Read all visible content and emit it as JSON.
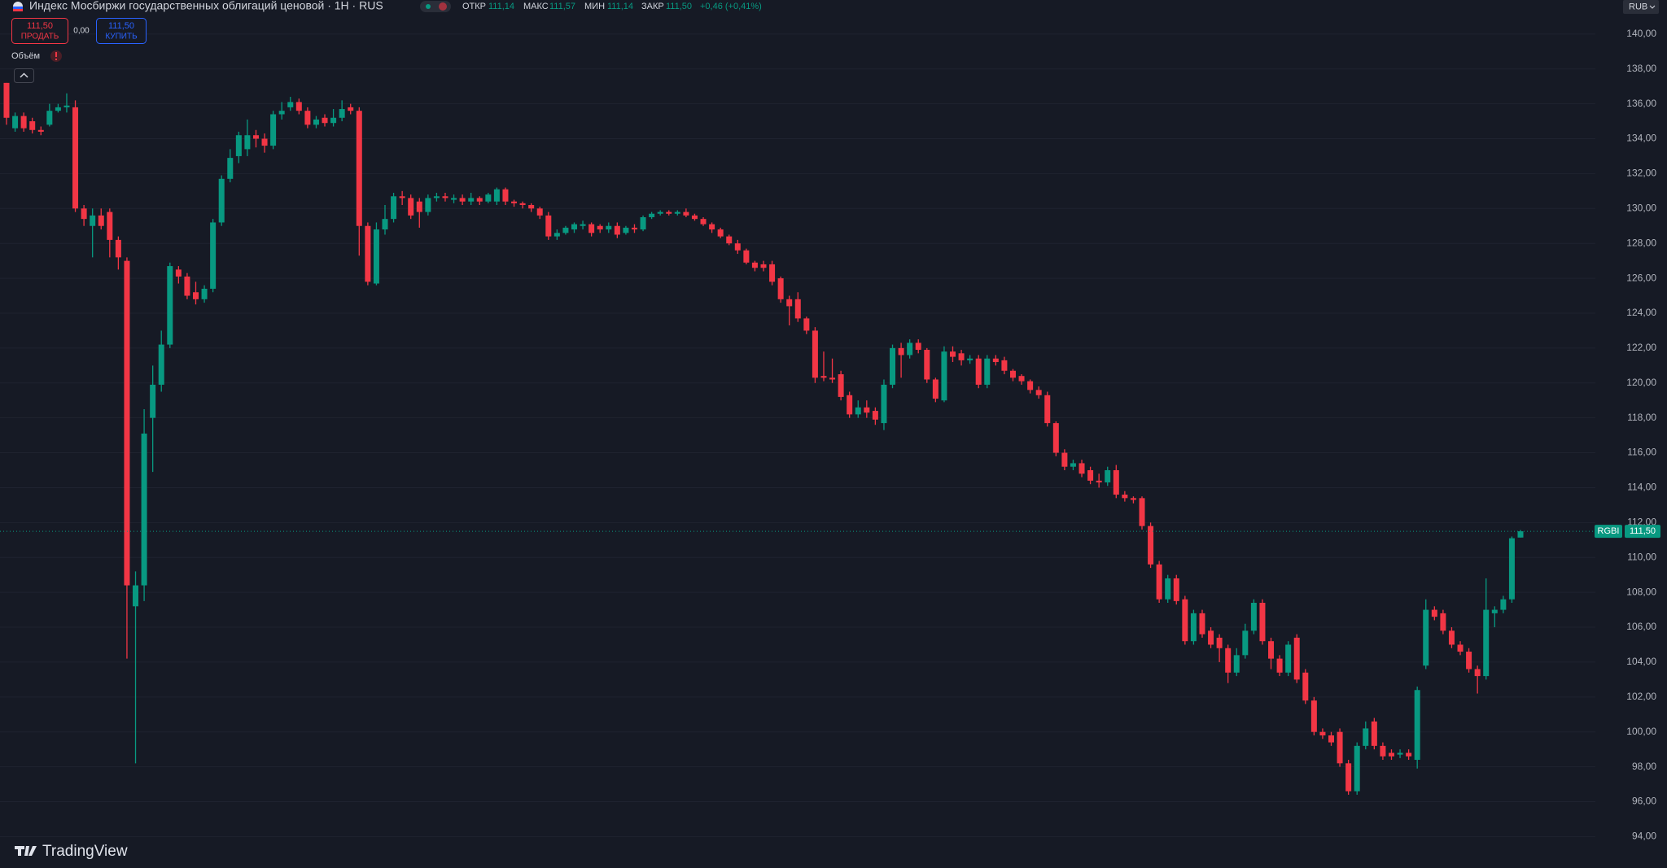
{
  "header": {
    "title": "Индекс Мосбиржи государственных облигаций ценовой · 1H · RUS",
    "open_label": "ОТКР",
    "open_value": "111,14",
    "high_label": "МАКС",
    "high_value": "111,57",
    "low_label": "МИН",
    "low_value": "111,14",
    "close_label": "ЗАКР",
    "close_value": "111,50",
    "change": "+0,46 (+0,41%)",
    "sell_price": "111,50",
    "sell_label": "ПРОДАТЬ",
    "spread": "0,00",
    "buy_price": "111,50",
    "buy_label": "КУПИТЬ",
    "volume_label": "Объём",
    "currency": "RUB",
    "brand": "TradingView"
  },
  "chart_data": {
    "type": "candlestick",
    "symbol": "RGBI",
    "up_color": "#089981",
    "down_color": "#f23645",
    "grid": true,
    "last_price": {
      "value": 111.5,
      "label": "111,50"
    },
    "ylim": [
      92.2,
      141.95
    ],
    "yticks": [
      {
        "value": 94,
        "label": "94,00"
      },
      {
        "value": 96,
        "label": "96,00"
      },
      {
        "value": 98,
        "label": "98,00"
      },
      {
        "value": 100,
        "label": "100,00"
      },
      {
        "value": 102,
        "label": "102,00"
      },
      {
        "value": 104,
        "label": "104,00"
      },
      {
        "value": 106,
        "label": "106,00"
      },
      {
        "value": 108,
        "label": "108,00"
      },
      {
        "value": 110,
        "label": "110,00"
      },
      {
        "value": 112,
        "label": "112,00"
      },
      {
        "value": 114,
        "label": "114,00"
      },
      {
        "value": 116,
        "label": "116,00"
      },
      {
        "value": 118,
        "label": "118,00"
      },
      {
        "value": 120,
        "label": "120,00"
      },
      {
        "value": 122,
        "label": "122,00"
      },
      {
        "value": 124,
        "label": "124,00"
      },
      {
        "value": 126,
        "label": "126,00"
      },
      {
        "value": 128,
        "label": "128,00"
      },
      {
        "value": 130,
        "label": "130,00"
      },
      {
        "value": 132,
        "label": "132,00"
      },
      {
        "value": 134,
        "label": "134,00"
      },
      {
        "value": 136,
        "label": "136,00"
      },
      {
        "value": 138,
        "label": "138,00"
      },
      {
        "value": 140,
        "label": "140,00"
      }
    ],
    "open": [
      137.2,
      134.6,
      135.3,
      135.0,
      134.5,
      134.8,
      135.6,
      135.8,
      135.8,
      130.0,
      129.0,
      129.6,
      129.8,
      128.2,
      127.0,
      107.2,
      108.4,
      118.0,
      119.9,
      122.2,
      126.5,
      126.1,
      125.2,
      124.8,
      125.4,
      129.2,
      131.7,
      133.0,
      133.4,
      134.2,
      134.0,
      133.6,
      135.4,
      135.8,
      136.1,
      135.6,
      134.8,
      135.2,
      134.9,
      135.2,
      135.8,
      135.6,
      129.0,
      125.7,
      128.8,
      129.4,
      130.7,
      130.6,
      130.4,
      129.8,
      130.6,
      130.7,
      130.5,
      130.6,
      130.4,
      130.6,
      130.4,
      130.4,
      131.1,
      130.4,
      130.3,
      130.2,
      130.0,
      129.6,
      128.4,
      128.6,
      128.8,
      129.0,
      129.1,
      129.0,
      128.8,
      129.0,
      128.6,
      128.9,
      128.8,
      129.5,
      129.7,
      129.8,
      129.7,
      129.8,
      129.6,
      129.4,
      129.1,
      128.8,
      128.4,
      128.0,
      127.6,
      126.9,
      126.8,
      126.8,
      126.0,
      124.8,
      124.8,
      123.7,
      123.0,
      120.4,
      120.3,
      120.5,
      119.3,
      118.2,
      118.6,
      118.4,
      117.7,
      119.9,
      122.0,
      121.6,
      122.3,
      121.9,
      120.2,
      119.0,
      121.8,
      121.7,
      121.3,
      121.4,
      119.9,
      121.4,
      121.3,
      120.7,
      120.4,
      120.1,
      119.6,
      119.3,
      117.7,
      116.0,
      115.2,
      115.4,
      115.0,
      114.4,
      114.3,
      115.0,
      113.6,
      113.4,
      113.4,
      111.8,
      109.6,
      107.6,
      108.8,
      107.6,
      105.2,
      106.8,
      105.8,
      105.4,
      104.8,
      103.4,
      104.4,
      105.8,
      107.4,
      105.2,
      104.2,
      103.4,
      105.4,
      103.4,
      101.8,
      100.0,
      99.8,
      100.0,
      98.2,
      96.6,
      99.2,
      100.6,
      99.2,
      98.8,
      98.7,
      98.8,
      98.4,
      103.8,
      107.0,
      106.8,
      105.8,
      105.0,
      104.6,
      103.6,
      103.2,
      106.8,
      107.0,
      107.6,
      111.14
    ],
    "high": [
      137.2,
      135.5,
      135.5,
      135.2,
      134.7,
      136.0,
      136.0,
      136.6,
      136.2,
      130.2,
      130.0,
      130.0,
      130.0,
      128.4,
      127.2,
      109.2,
      118.5,
      121.0,
      123.0,
      126.9,
      126.7,
      126.3,
      125.8,
      125.6,
      129.4,
      131.9,
      133.4,
      134.4,
      135.1,
      134.5,
      134.3,
      135.6,
      136.1,
      136.4,
      136.3,
      135.8,
      135.3,
      135.4,
      135.7,
      136.2,
      136.0,
      135.8,
      129.2,
      129.2,
      130.2,
      130.9,
      131.0,
      130.8,
      130.6,
      130.8,
      130.9,
      130.9,
      130.8,
      130.8,
      130.9,
      130.7,
      130.9,
      131.2,
      131.2,
      130.5,
      130.4,
      130.3,
      130.1,
      129.8,
      128.8,
      129.0,
      129.2,
      129.3,
      129.2,
      129.1,
      129.2,
      129.2,
      129.0,
      129.1,
      129.6,
      129.8,
      129.9,
      129.9,
      129.9,
      130.0,
      129.7,
      129.5,
      129.2,
      128.9,
      128.5,
      128.2,
      127.7,
      127.0,
      127.0,
      127.0,
      126.1,
      125.0,
      125.2,
      123.8,
      123.2,
      121.8,
      121.4,
      120.7,
      119.5,
      119.0,
      119.0,
      118.6,
      120.2,
      122.2,
      122.3,
      122.5,
      122.5,
      122.0,
      120.3,
      122.1,
      122.1,
      121.9,
      121.6,
      121.6,
      121.6,
      121.6,
      121.5,
      120.8,
      120.5,
      120.2,
      119.8,
      119.5,
      117.8,
      116.2,
      115.6,
      115.6,
      115.2,
      114.8,
      115.2,
      115.3,
      113.8,
      113.5,
      113.5,
      112.0,
      109.8,
      109.0,
      109.0,
      107.8,
      107.0,
      107.0,
      106.0,
      105.6,
      105.0,
      104.8,
      106.2,
      107.6,
      107.6,
      105.4,
      104.4,
      105.2,
      105.6,
      103.6,
      102.0,
      100.2,
      100.0,
      100.2,
      98.4,
      99.4,
      100.6,
      100.8,
      99.4,
      99.0,
      99.0,
      99.0,
      102.6,
      107.6,
      107.2,
      107.0,
      106.0,
      105.2,
      104.8,
      103.8,
      108.8,
      107.2,
      107.8,
      111.2,
      111.57
    ],
    "low": [
      134.8,
      134.4,
      134.4,
      134.3,
      134.2,
      134.7,
      135.5,
      135.5,
      129.8,
      129.0,
      127.2,
      128.8,
      127.2,
      126.5,
      104.2,
      98.2,
      107.5,
      114.9,
      119.5,
      122.0,
      125.7,
      124.8,
      124.5,
      124.6,
      125.2,
      129.0,
      131.5,
      132.6,
      133.0,
      133.5,
      133.2,
      133.4,
      135.1,
      135.6,
      135.4,
      134.6,
      134.6,
      134.7,
      134.7,
      135.0,
      135.4,
      127.3,
      125.6,
      125.6,
      128.5,
      129.2,
      130.2,
      129.4,
      128.9,
      129.6,
      130.4,
      130.4,
      130.3,
      130.2,
      130.2,
      130.2,
      130.3,
      130.2,
      130.2,
      130.1,
      130.0,
      129.8,
      129.4,
      128.2,
      128.2,
      128.5,
      128.6,
      128.8,
      128.4,
      128.6,
      128.6,
      128.3,
      128.5,
      128.6,
      128.7,
      129.4,
      129.6,
      129.6,
      129.6,
      129.5,
      129.3,
      129.0,
      128.6,
      128.3,
      127.9,
      127.4,
      126.8,
      126.4,
      126.4,
      125.6,
      124.6,
      123.3,
      123.5,
      122.8,
      120.0,
      120.1,
      120.0,
      119.0,
      118.0,
      118.0,
      118.0,
      117.6,
      117.3,
      119.7,
      120.3,
      121.4,
      121.7,
      120.0,
      118.9,
      118.9,
      121.2,
      121.0,
      121.1,
      119.7,
      119.7,
      121.0,
      120.5,
      120.1,
      119.9,
      119.4,
      119.1,
      117.5,
      115.8,
      115.0,
      115.0,
      114.6,
      114.2,
      114.0,
      114.1,
      113.4,
      113.2,
      113.1,
      111.6,
      109.4,
      107.4,
      107.4,
      107.3,
      105.0,
      105.0,
      105.4,
      104.8,
      104.0,
      102.8,
      103.2,
      104.2,
      105.6,
      105.0,
      103.6,
      103.2,
      103.2,
      102.8,
      101.6,
      99.8,
      99.6,
      99.2,
      98.0,
      96.4,
      96.4,
      99.0,
      99.0,
      98.4,
      98.4,
      98.5,
      98.4,
      97.9,
      103.6,
      106.4,
      105.6,
      104.8,
      104.4,
      103.4,
      102.2,
      103.0,
      106.0,
      106.8,
      107.4,
      111.14
    ],
    "close": [
      135.2,
      135.3,
      134.6,
      134.5,
      134.4,
      135.6,
      135.8,
      135.9,
      130.0,
      129.4,
      129.6,
      129.0,
      128.2,
      127.2,
      108.4,
      108.4,
      117.1,
      119.9,
      122.2,
      126.7,
      126.1,
      125.0,
      124.8,
      125.4,
      129.2,
      131.7,
      132.9,
      134.2,
      134.2,
      134.0,
      133.6,
      135.4,
      135.6,
      136.1,
      135.6,
      134.8,
      135.1,
      134.9,
      135.2,
      135.7,
      135.6,
      129.0,
      125.8,
      128.8,
      129.4,
      130.7,
      130.6,
      129.6,
      129.8,
      130.6,
      130.7,
      130.6,
      130.6,
      130.4,
      130.6,
      130.4,
      130.8,
      131.1,
      130.4,
      130.3,
      130.2,
      130.0,
      129.6,
      128.4,
      128.6,
      128.9,
      129.1,
      129.1,
      128.6,
      128.8,
      129.0,
      128.5,
      128.9,
      128.8,
      129.5,
      129.7,
      129.8,
      129.7,
      129.8,
      129.6,
      129.4,
      129.1,
      128.8,
      128.4,
      128.0,
      127.6,
      126.9,
      126.6,
      126.6,
      125.8,
      124.8,
      124.4,
      123.7,
      123.0,
      120.3,
      120.3,
      120.2,
      119.2,
      118.2,
      118.6,
      118.3,
      117.9,
      119.9,
      122.0,
      121.6,
      122.3,
      121.9,
      120.2,
      119.1,
      121.8,
      121.5,
      121.3,
      121.4,
      119.9,
      121.4,
      121.2,
      120.7,
      120.3,
      120.1,
      119.6,
      119.3,
      117.7,
      116.0,
      115.2,
      115.4,
      114.8,
      114.4,
      114.3,
      115.0,
      113.6,
      113.4,
      113.3,
      111.8,
      109.6,
      107.6,
      108.8,
      107.5,
      105.2,
      106.8,
      105.6,
      105.0,
      104.8,
      103.4,
      104.4,
      105.8,
      107.4,
      105.2,
      104.2,
      103.4,
      105.0,
      103.0,
      101.8,
      100.0,
      99.8,
      99.4,
      98.2,
      96.6,
      99.2,
      100.2,
      99.2,
      98.6,
      98.6,
      98.8,
      98.6,
      102.4,
      107.0,
      106.6,
      105.8,
      105.0,
      104.6,
      103.6,
      103.2,
      107.0,
      107.0,
      107.6,
      111.1,
      111.5
    ]
  }
}
